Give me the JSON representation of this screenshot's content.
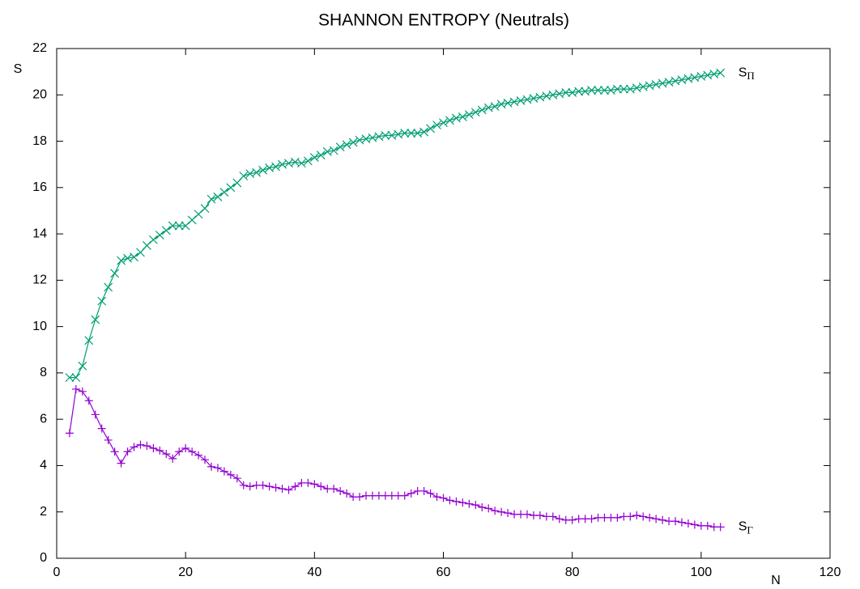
{
  "chart_data": {
    "type": "line",
    "title": "SHANNON ENTROPY (Neutrals)",
    "xlabel": "N",
    "ylabel": "S",
    "xlim": [
      0,
      120
    ],
    "xticks": [
      0,
      20,
      40,
      60,
      80,
      100,
      120
    ],
    "ylim": [
      0,
      22
    ],
    "yticks": [
      0,
      2,
      4,
      6,
      8,
      10,
      12,
      14,
      16,
      18,
      20,
      22
    ],
    "x": [
      2,
      3,
      4,
      5,
      6,
      7,
      8,
      9,
      10,
      11,
      12,
      13,
      14,
      15,
      16,
      17,
      18,
      19,
      20,
      21,
      22,
      23,
      24,
      25,
      26,
      27,
      28,
      29,
      30,
      31,
      32,
      33,
      34,
      35,
      36,
      37,
      38,
      39,
      40,
      41,
      42,
      43,
      44,
      45,
      46,
      47,
      48,
      49,
      50,
      51,
      52,
      53,
      54,
      55,
      56,
      57,
      58,
      59,
      60,
      61,
      62,
      63,
      64,
      65,
      66,
      67,
      68,
      69,
      70,
      71,
      72,
      73,
      74,
      75,
      76,
      77,
      78,
      79,
      80,
      81,
      82,
      83,
      84,
      85,
      86,
      87,
      88,
      89,
      90,
      91,
      92,
      93,
      94,
      95,
      96,
      97,
      98,
      99,
      100,
      101,
      102,
      103
    ],
    "series": [
      {
        "name": "SΠ",
        "color": "#009e73",
        "marker": "x",
        "values": [
          7.8,
          7.8,
          8.3,
          9.4,
          10.3,
          11.1,
          11.7,
          12.3,
          12.85,
          12.95,
          13.0,
          13.2,
          13.5,
          13.75,
          13.95,
          14.15,
          14.35,
          14.35,
          14.35,
          14.6,
          14.85,
          15.1,
          15.5,
          15.6,
          15.8,
          16.0,
          16.2,
          16.5,
          16.6,
          16.65,
          16.75,
          16.85,
          16.9,
          17.0,
          17.05,
          17.1,
          17.05,
          17.15,
          17.3,
          17.4,
          17.55,
          17.6,
          17.75,
          17.85,
          17.95,
          18.05,
          18.1,
          18.15,
          18.2,
          18.25,
          18.25,
          18.3,
          18.35,
          18.35,
          18.35,
          18.4,
          18.55,
          18.7,
          18.8,
          18.9,
          19.0,
          19.05,
          19.15,
          19.25,
          19.35,
          19.45,
          19.5,
          19.6,
          19.65,
          19.7,
          19.75,
          19.8,
          19.85,
          19.9,
          19.95,
          20.0,
          20.05,
          20.1,
          20.1,
          20.15,
          20.15,
          20.2,
          20.2,
          20.2,
          20.2,
          20.25,
          20.25,
          20.25,
          20.3,
          20.35,
          20.4,
          20.45,
          20.5,
          20.55,
          20.6,
          20.65,
          20.7,
          20.75,
          20.8,
          20.85,
          20.9,
          20.95
        ]
      },
      {
        "name": "SΓ",
        "color": "#9400d3",
        "marker": "+",
        "values": [
          5.4,
          7.3,
          7.2,
          6.8,
          6.2,
          5.6,
          5.1,
          4.6,
          4.1,
          4.6,
          4.8,
          4.9,
          4.85,
          4.75,
          4.65,
          4.5,
          4.3,
          4.6,
          4.75,
          4.6,
          4.45,
          4.25,
          3.95,
          3.9,
          3.75,
          3.6,
          3.45,
          3.15,
          3.1,
          3.15,
          3.15,
          3.1,
          3.05,
          3.0,
          2.95,
          3.1,
          3.25,
          3.25,
          3.2,
          3.1,
          3.0,
          3.0,
          2.9,
          2.8,
          2.65,
          2.65,
          2.7,
          2.7,
          2.7,
          2.7,
          2.7,
          2.7,
          2.7,
          2.8,
          2.9,
          2.9,
          2.8,
          2.65,
          2.6,
          2.5,
          2.45,
          2.4,
          2.35,
          2.3,
          2.2,
          2.15,
          2.05,
          2.0,
          1.95,
          1.9,
          1.9,
          1.9,
          1.85,
          1.85,
          1.8,
          1.8,
          1.7,
          1.65,
          1.65,
          1.7,
          1.7,
          1.7,
          1.75,
          1.75,
          1.75,
          1.75,
          1.8,
          1.8,
          1.85,
          1.8,
          1.75,
          1.7,
          1.65,
          1.6,
          1.6,
          1.55,
          1.5,
          1.45,
          1.4,
          1.4,
          1.35,
          1.35
        ]
      }
    ]
  }
}
